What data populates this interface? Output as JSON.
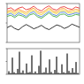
{
  "chart_data": [
    {
      "type": "line",
      "x": [
        0,
        1,
        2,
        3,
        4,
        5,
        6,
        7,
        8,
        9,
        10,
        11,
        12,
        13,
        14,
        15,
        16,
        17,
        18,
        19
      ],
      "xlim": [
        0,
        19
      ],
      "ylim": [
        0,
        10
      ],
      "yticks": [
        0,
        5,
        10
      ],
      "tick_labels": false,
      "series": [
        {
          "color": "#e41a1c",
          "values": [
            8.6,
            8.9,
            8.2,
            8.8,
            9.1,
            8.4,
            8.7,
            9.3,
            8.5,
            8.1,
            8.9,
            9.4,
            8.6,
            8.3,
            9.0,
            9.2,
            8.7,
            8.5,
            9.1,
            8.8
          ]
        },
        {
          "color": "#ff8c00",
          "values": [
            8.0,
            8.3,
            7.8,
            8.5,
            8.1,
            7.7,
            8.4,
            8.8,
            7.9,
            7.6,
            8.2,
            8.9,
            8.1,
            7.8,
            8.6,
            8.7,
            8.0,
            8.2,
            8.5,
            8.3
          ]
        },
        {
          "color": "#e6c800",
          "values": [
            7.6,
            7.9,
            7.3,
            8.0,
            7.7,
            7.2,
            8.0,
            8.3,
            7.5,
            7.1,
            7.8,
            8.5,
            7.7,
            7.4,
            8.1,
            8.2,
            7.6,
            7.7,
            8.0,
            7.9
          ]
        },
        {
          "color": "#3a6fd8",
          "values": [
            7.1,
            7.5,
            6.8,
            7.6,
            7.2,
            6.7,
            7.5,
            7.9,
            7.0,
            6.6,
            7.3,
            8.0,
            7.2,
            6.9,
            7.7,
            7.8,
            7.1,
            7.3,
            7.6,
            7.4
          ]
        },
        {
          "color": "#2ca02c",
          "values": [
            6.7,
            7.0,
            6.4,
            7.1,
            6.8,
            6.3,
            7.1,
            7.4,
            6.6,
            6.2,
            6.9,
            7.6,
            6.8,
            6.5,
            7.2,
            7.3,
            6.7,
            6.8,
            7.2,
            7.0
          ]
        },
        {
          "color": "#000000",
          "values": [
            3.8,
            4.3,
            3.6,
            3.2,
            4.0,
            4.6,
            4.1,
            3.5,
            3.9,
            4.4,
            3.7,
            3.3,
            3.9,
            4.5,
            4.2,
            3.6,
            4.0,
            4.7,
            4.3,
            3.9
          ]
        }
      ]
    },
    {
      "type": "bar",
      "x": [
        0,
        1,
        2,
        3,
        4,
        5,
        6,
        7,
        8,
        9,
        10,
        11,
        12,
        13,
        14,
        15,
        16,
        17,
        18,
        19,
        20,
        21,
        22,
        23,
        24,
        25,
        26,
        27,
        28,
        29,
        30,
        31,
        32,
        33,
        34,
        35,
        36,
        37,
        38,
        39
      ],
      "xlim": [
        -1,
        40
      ],
      "ylim": [
        0,
        10
      ],
      "yticks": [
        0,
        5,
        10
      ],
      "tick_labels": false,
      "color": "#000000",
      "values": [
        1.2,
        0.5,
        6.5,
        0.8,
        0.4,
        2.1,
        8.8,
        0.6,
        1.5,
        0.3,
        4.2,
        0.7,
        0.9,
        7.4,
        0.5,
        1.1,
        0.4,
        3.3,
        9.2,
        0.6,
        0.8,
        2.6,
        0.5,
        5.8,
        0.9,
        0.3,
        1.7,
        6.9,
        0.6,
        0.4,
        3.9,
        0.8,
        0.5,
        8.1,
        1.3,
        0.6,
        2.4,
        0.7,
        4.8,
        0.5
      ]
    }
  ]
}
